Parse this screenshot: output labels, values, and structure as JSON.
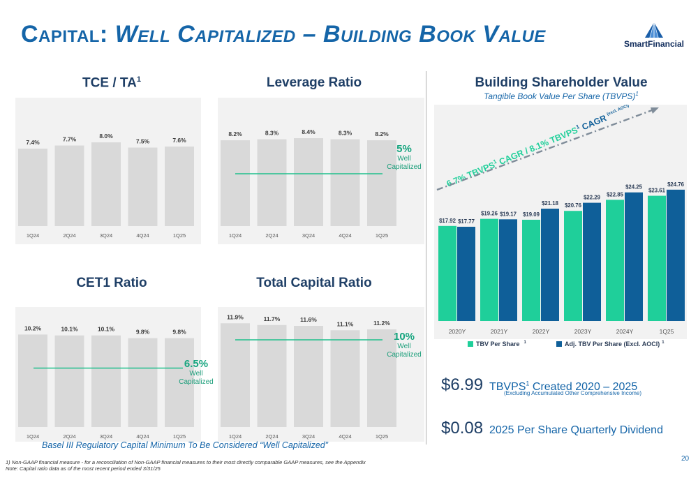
{
  "slide": {
    "title_lead": "Capital:",
    "title_rest": " Well Capitalized – Building Book Value",
    "logo_text": "SmartFinancial",
    "page_number": "20"
  },
  "panels": {
    "tce": {
      "title": "TCE / TA",
      "title_sup": "1"
    },
    "leverage": {
      "title": "Leverage Ratio",
      "well_pct": "5%",
      "well_label1": "Well",
      "well_label2": "Capitalized"
    },
    "cet1": {
      "title": "CET1 Ratio",
      "well_pct": "6.5%",
      "well_label1": "Well",
      "well_label2": "Capitalized"
    },
    "total": {
      "title": "Total Capital Ratio",
      "well_pct": "10%",
      "well_label1": "Well",
      "well_label2": "Capitalized"
    }
  },
  "right": {
    "title": "Building Shareholder Value",
    "subtitle": "Tangible Book Value Per Share (TBVPS)",
    "subtitle_sup": "1",
    "cagr_text_1": "6.7% TBVPS",
    "cagr_text_2": " CAGR / 8.1% TBVPS",
    "cagr_text_3": " CAGR",
    "cagr_sup": "1",
    "cagr_note": "(excl. AOCI)",
    "legend_1": "TBV Per Share",
    "legend_1_sup": "1",
    "legend_2": "Adj. TBV Per Share (Excl. AOCI)",
    "legend_2_sup": "1",
    "stat1_big": "$6.99",
    "stat1_text_a": "TBVPS",
    "stat1_sup": "1",
    "stat1_text_b": " Created 2020 – 2025",
    "stat1_note": "(Excluding Accumulated Other Comprehensive Income)",
    "stat2_big": "$0.08",
    "stat2_text": "2025 Per Share Quarterly Dividend"
  },
  "footer": {
    "basel": "Basel III Regulatory Capital Minimum To Be Considered “Well Capitalized”",
    "note1": "1) Non-GAAP financial measure - for a reconciliation of Non-GAAP financial measures to their most directly comparable GAAP measures, see the Appendix",
    "note2": "Note: Capital ratio data as of the most recent period ended 3/31/25"
  },
  "colors": {
    "bar_gray": "#d9d9d9",
    "teal": "#1fcf9a",
    "navy": "#0f5f99",
    "line": "#20c08c"
  },
  "chart_data": [
    {
      "type": "bar",
      "title": "TCE / TA",
      "categories": [
        "1Q24",
        "2Q24",
        "3Q24",
        "4Q24",
        "1Q25"
      ],
      "values": [
        7.4,
        7.7,
        8.0,
        7.5,
        7.6
      ],
      "labels": [
        "7.4%",
        "7.7%",
        "8.0%",
        "7.5%",
        "7.6%"
      ]
    },
    {
      "type": "bar",
      "title": "Leverage Ratio",
      "categories": [
        "1Q24",
        "2Q24",
        "3Q24",
        "4Q24",
        "1Q25"
      ],
      "values": [
        8.2,
        8.3,
        8.4,
        8.3,
        8.2
      ],
      "labels": [
        "8.2%",
        "8.3%",
        "8.4%",
        "8.3%",
        "8.2%"
      ],
      "reference_line": 5
    },
    {
      "type": "bar",
      "title": "CET1 Ratio",
      "categories": [
        "1Q24",
        "2Q24",
        "3Q24",
        "4Q24",
        "1Q25"
      ],
      "values": [
        10.2,
        10.1,
        10.1,
        9.8,
        9.8
      ],
      "labels": [
        "10.2%",
        "10.1%",
        "10.1%",
        "9.8%",
        "9.8%"
      ],
      "reference_line": 6.5
    },
    {
      "type": "bar",
      "title": "Total Capital Ratio",
      "categories": [
        "1Q24",
        "2Q24",
        "3Q24",
        "4Q24",
        "1Q25"
      ],
      "values": [
        11.9,
        11.7,
        11.6,
        11.1,
        11.2
      ],
      "labels": [
        "11.9%",
        "11.7%",
        "11.6%",
        "11.1%",
        "11.2%"
      ],
      "reference_line": 10
    },
    {
      "type": "bar",
      "title": "Building Shareholder Value",
      "categories": [
        "2020Y",
        "2021Y",
        "2022Y",
        "2023Y",
        "2024Y",
        "1Q25"
      ],
      "series": [
        {
          "name": "TBV Per Share",
          "values": [
            17.92,
            19.26,
            19.09,
            20.76,
            22.85,
            23.61
          ],
          "labels": [
            "$17.92",
            "$19.26",
            "$19.09",
            "$20.76",
            "$22.85",
            "$23.61"
          ]
        },
        {
          "name": "Adj. TBV Per Share (Excl. AOCI)",
          "values": [
            17.77,
            19.17,
            21.18,
            22.29,
            24.25,
            24.76
          ],
          "labels": [
            "$17.77",
            "$19.17",
            "$21.18",
            "$22.29",
            "$24.25",
            "$24.76"
          ]
        }
      ]
    }
  ]
}
